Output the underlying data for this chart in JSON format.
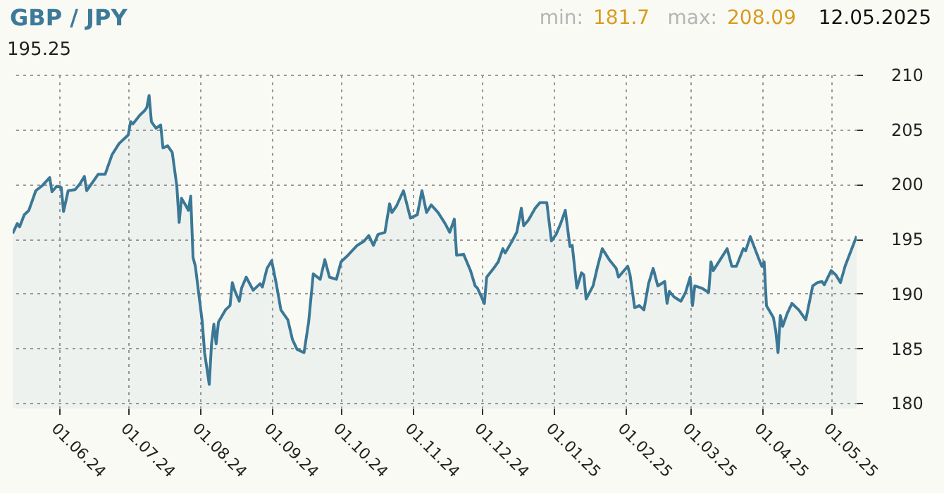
{
  "chart_data": {
    "type": "area",
    "title": "GBP / JPY",
    "annotations": [
      "min:",
      "181.7",
      "max:",
      "208.09",
      "12.05.2025",
      "195.25"
    ],
    "x": [
      "2024-05-12",
      "2024-05-14",
      "2024-05-15",
      "2024-05-17",
      "2024-05-19",
      "2024-05-22",
      "2024-05-25",
      "2024-05-28",
      "2024-05-29",
      "2024-05-31",
      "2024-06-02",
      "2024-06-03",
      "2024-06-05",
      "2024-06-08",
      "2024-06-10",
      "2024-06-12",
      "2024-06-13",
      "2024-06-18",
      "2024-06-21",
      "2024-06-24",
      "2024-06-27",
      "2024-07-01",
      "2024-07-02",
      "2024-07-03",
      "2024-07-06",
      "2024-07-08",
      "2024-07-09",
      "2024-07-10",
      "2024-07-11",
      "2024-07-13",
      "2024-07-15",
      "2024-07-16",
      "2024-07-18",
      "2024-07-20",
      "2024-07-22",
      "2024-07-23",
      "2024-07-24",
      "2024-07-26",
      "2024-07-27",
      "2024-07-28",
      "2024-07-29",
      "2024-07-30",
      "2024-08-02",
      "2024-08-03",
      "2024-08-05",
      "2024-08-06",
      "2024-08-07",
      "2024-08-08",
      "2024-08-09",
      "2024-08-12",
      "2024-08-14",
      "2024-08-15",
      "2024-08-16",
      "2024-08-18",
      "2024-08-19",
      "2024-08-21",
      "2024-08-24",
      "2024-08-27",
      "2024-08-28",
      "2024-08-30",
      "2024-09-01",
      "2024-09-03",
      "2024-09-05",
      "2024-09-08",
      "2024-09-10",
      "2024-09-12",
      "2024-09-15",
      "2024-09-17",
      "2024-09-19",
      "2024-09-22",
      "2024-09-24",
      "2024-09-26",
      "2024-09-29",
      "2024-10-01",
      "2024-10-04",
      "2024-10-08",
      "2024-10-11",
      "2024-10-13",
      "2024-10-15",
      "2024-10-17",
      "2024-10-20",
      "2024-10-22",
      "2024-10-23",
      "2024-10-25",
      "2024-10-28",
      "2024-10-31",
      "2024-11-03",
      "2024-11-05",
      "2024-11-07",
      "2024-11-09",
      "2024-11-12",
      "2024-11-15",
      "2024-11-17",
      "2024-11-19",
      "2024-11-20",
      "2024-11-23",
      "2024-11-26",
      "2024-11-28",
      "2024-11-29",
      "2024-12-02",
      "2024-12-03",
      "2024-12-06",
      "2024-12-08",
      "2024-12-10",
      "2024-12-11",
      "2024-12-14",
      "2024-12-16",
      "2024-12-18",
      "2024-12-19",
      "2024-12-21",
      "2024-12-24",
      "2024-12-26",
      "2024-12-29",
      "2024-12-31",
      "2025-01-02",
      "2025-01-04",
      "2025-01-06",
      "2025-01-08",
      "2025-01-09",
      "2025-01-11",
      "2025-01-13",
      "2025-01-14",
      "2025-01-15",
      "2025-01-18",
      "2025-01-20",
      "2025-01-22",
      "2025-01-25",
      "2025-01-28",
      "2025-01-29",
      "2025-02-02",
      "2025-02-03",
      "2025-02-05",
      "2025-02-07",
      "2025-02-09",
      "2025-02-11",
      "2025-02-13",
      "2025-02-15",
      "2025-02-18",
      "2025-02-19",
      "2025-02-20",
      "2025-02-22",
      "2025-02-25",
      "2025-02-27",
      "2025-03-01",
      "2025-03-02",
      "2025-03-03",
      "2025-03-06",
      "2025-03-09",
      "2025-03-10",
      "2025-03-11",
      "2025-03-14",
      "2025-03-17",
      "2025-03-19",
      "2025-03-21",
      "2025-03-24",
      "2025-03-25",
      "2025-03-27",
      "2025-03-29",
      "2025-03-31",
      "2025-04-01",
      "2025-04-02",
      "2025-04-03",
      "2025-04-06",
      "2025-04-07",
      "2025-04-08",
      "2025-04-09",
      "2025-04-10",
      "2025-04-12",
      "2025-04-14",
      "2025-04-17",
      "2025-04-20",
      "2025-04-23",
      "2025-04-25",
      "2025-04-27",
      "2025-04-28",
      "2025-05-01",
      "2025-05-03",
      "2025-05-05",
      "2025-05-07",
      "2025-05-12"
    ],
    "series": [
      {
        "color": "#3b7896",
        "values": [
          195.5,
          196.4,
          196.1,
          197.2,
          197.6,
          199.4,
          199.9,
          200.6,
          199.3,
          199.8,
          199.7,
          197.5,
          199.4,
          199.5,
          200.0,
          200.7,
          199.4,
          200.9,
          200.9,
          202.7,
          203.7,
          204.5,
          205.7,
          205.5,
          206.3,
          206.7,
          207.0,
          208.09,
          205.7,
          205.1,
          205.4,
          203.3,
          203.5,
          202.9,
          199.8,
          196.5,
          198.7,
          198.0,
          197.6,
          198.9,
          193.3,
          192.5,
          187.4,
          184.6,
          181.7,
          185.4,
          187.2,
          185.4,
          187.4,
          188.5,
          188.9,
          191.0,
          190.3,
          189.3,
          190.5,
          191.5,
          190.3,
          190.9,
          190.6,
          192.3,
          193.0,
          190.9,
          188.5,
          187.6,
          185.8,
          184.9,
          184.6,
          187.4,
          191.8,
          191.3,
          193.1,
          191.5,
          191.3,
          192.9,
          193.5,
          194.4,
          194.8,
          195.3,
          194.4,
          195.4,
          195.6,
          198.2,
          197.4,
          198.0,
          199.4,
          196.9,
          197.2,
          199.4,
          197.4,
          198.1,
          197.4,
          196.4,
          195.6,
          196.8,
          193.5,
          193.6,
          192.1,
          190.7,
          190.5,
          189.1,
          191.5,
          192.3,
          192.9,
          194.1,
          193.7,
          194.8,
          195.6,
          197.8,
          196.2,
          196.7,
          197.8,
          198.3,
          198.3,
          194.8,
          195.4,
          196.4,
          197.6,
          194.3,
          194.4,
          190.5,
          191.9,
          191.7,
          189.5,
          190.7,
          192.5,
          194.1,
          193.1,
          192.3,
          191.5,
          192.5,
          191.7,
          188.7,
          188.9,
          188.5,
          190.9,
          192.3,
          190.7,
          191.1,
          189.1,
          190.2,
          189.7,
          189.3,
          190.1,
          191.5,
          188.9,
          190.7,
          190.5,
          190.1,
          192.9,
          192.1,
          193.1,
          194.1,
          192.5,
          192.5,
          194.1,
          193.9,
          195.2,
          194.1,
          193.0,
          192.5,
          192.9,
          188.9,
          187.8,
          186.6,
          184.6,
          188.0,
          187.0,
          188.2,
          189.1,
          188.5,
          187.6,
          190.7,
          191.0,
          191.1,
          190.8,
          192.1,
          191.7,
          191.0,
          192.5,
          195.25
        ]
      }
    ],
    "xlim": [
      "2024-05-12",
      "2025-05-12"
    ],
    "xticks": [
      {
        "value": "2024-06-01",
        "label": "01.06.24"
      },
      {
        "value": "2024-07-01",
        "label": "01.07.24"
      },
      {
        "value": "2024-08-01",
        "label": "01.08.24"
      },
      {
        "value": "2024-09-01",
        "label": "01.09.24"
      },
      {
        "value": "2024-10-01",
        "label": "01.10.24"
      },
      {
        "value": "2024-11-01",
        "label": "01.11.24"
      },
      {
        "value": "2024-12-01",
        "label": "01.12.24"
      },
      {
        "value": "2025-01-01",
        "label": "01.01.25"
      },
      {
        "value": "2025-02-01",
        "label": "01.02.25"
      },
      {
        "value": "2025-03-01",
        "label": "01.03.25"
      },
      {
        "value": "2025-04-01",
        "label": "01.04.25"
      },
      {
        "value": "2025-05-01",
        "label": "01.05.25"
      }
    ],
    "ylim": [
      179.5,
      210
    ],
    "yticks": [
      180,
      185,
      190,
      195,
      200,
      205,
      210
    ],
    "grid": true,
    "marker": "none",
    "line_style": "solid"
  }
}
